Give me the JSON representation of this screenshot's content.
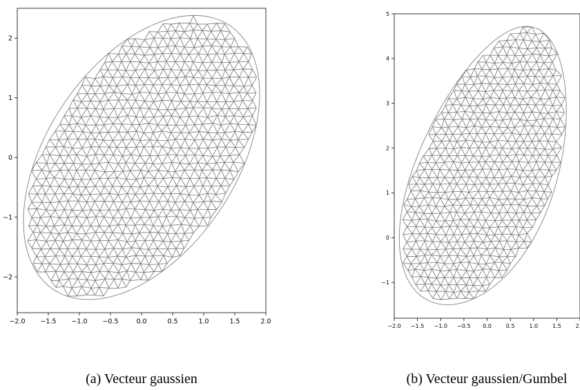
{
  "figures": [
    {
      "caption": "(a) Vecteur gaussien",
      "chart_data": {
        "type": "mesh",
        "title": "",
        "xlabel": "",
        "ylabel": "",
        "xlim": [
          -2.0,
          2.0
        ],
        "ylim": [
          -2.6,
          2.5
        ],
        "xticks": [
          "−2.0",
          "−1.5",
          "−1.0",
          "−0.5",
          "0.0",
          "0.5",
          "1.0",
          "1.5",
          "2.0"
        ],
        "xtick_values": [
          -2.0,
          -1.5,
          -1.0,
          -0.5,
          0.0,
          0.5,
          1.0,
          1.5,
          2.0
        ],
        "yticks": [
          "−2",
          "−1",
          "0",
          "1",
          "2"
        ],
        "ytick_values": [
          -2,
          -1,
          0,
          1,
          2
        ],
        "grid": false,
        "mesh_color": "#808080",
        "domain": {
          "shape": "ellipse",
          "center": [
            0.0,
            0.0
          ],
          "x_extent": [
            -1.9,
            1.9
          ],
          "y_extent": [
            -2.38,
            2.38
          ],
          "top_point": [
            0.85,
            2.38
          ],
          "bottom_point": [
            -0.85,
            -2.38
          ]
        }
      }
    },
    {
      "caption": "(b) Vecteur gaussien/Gumbel",
      "chart_data": {
        "type": "mesh",
        "title": "",
        "xlabel": "",
        "ylabel": "",
        "xlim": [
          -2.0,
          2.0
        ],
        "ylim": [
          -1.8,
          5.0
        ],
        "xticks": [
          "−2.0",
          "−1.5",
          "−1.0",
          "−0.5",
          "0.0",
          "0.5",
          "1.0",
          "1.5",
          "2.0"
        ],
        "xtick_values": [
          -2.0,
          -1.5,
          -1.0,
          -0.5,
          0.0,
          0.5,
          1.0,
          1.5,
          2.0
        ],
        "yticks": [
          "−1",
          "0",
          "1",
          "2",
          "3",
          "4",
          "5"
        ],
        "ytick_values": [
          -1,
          0,
          1,
          2,
          3,
          4,
          5
        ],
        "grid": false,
        "mesh_color": "#808080",
        "domain": {
          "shape": "skewed-ellipse",
          "x_extent": [
            -1.9,
            1.9
          ],
          "y_extent": [
            -1.5,
            4.72
          ],
          "top_point": [
            0.85,
            4.72
          ],
          "bottom_point": [
            -0.85,
            -1.5
          ]
        }
      }
    }
  ]
}
